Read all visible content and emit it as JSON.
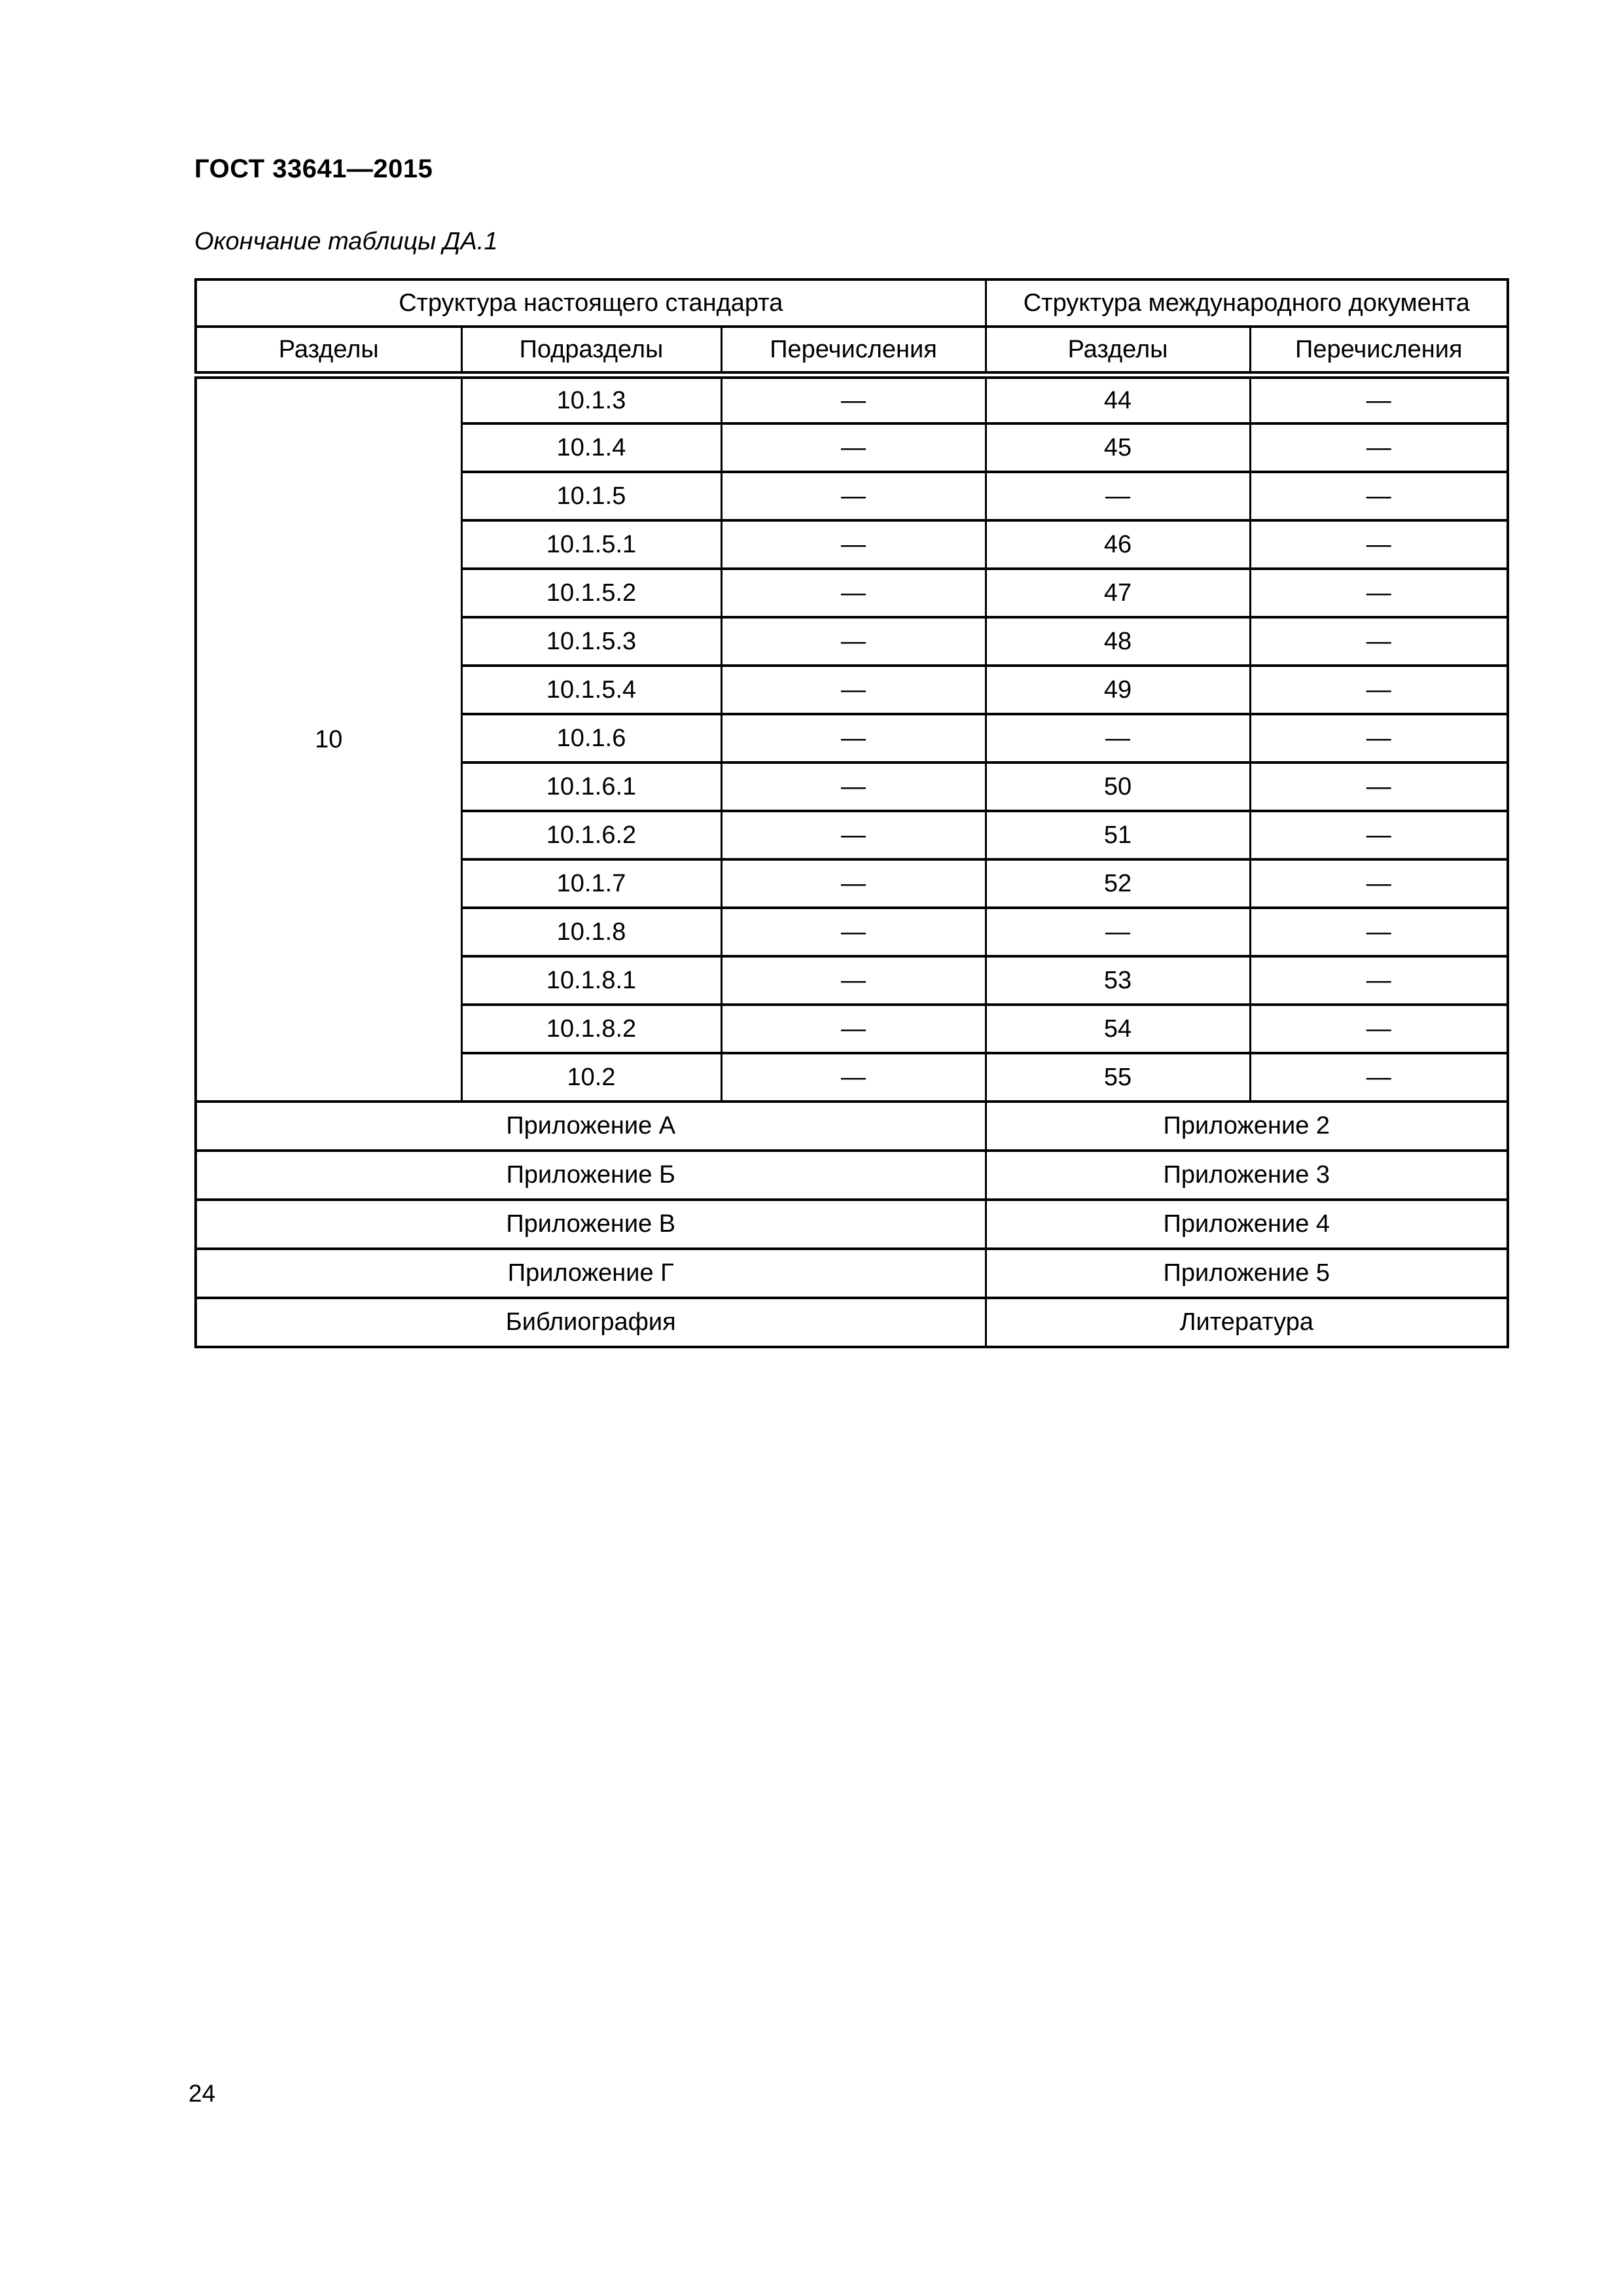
{
  "page": {
    "header": "ГОСТ 33641—2015",
    "caption": "Окончание таблицы ДА.1",
    "page_number": "24"
  },
  "table": {
    "group_headers": [
      {
        "label": "Структура настоящего стандарта",
        "colspan": 3
      },
      {
        "label": "Структура международного документа",
        "colspan": 2
      }
    ],
    "column_headers": [
      "Разделы",
      "Подразделы",
      "Перечисления",
      "Разделы",
      "Перечисления"
    ],
    "section_label": "10",
    "rows": [
      {
        "subsection": "10.1.3",
        "enumerations": "—",
        "intl_section": "44",
        "intl_enumerations": "—"
      },
      {
        "subsection": "10.1.4",
        "enumerations": "—",
        "intl_section": "45",
        "intl_enumerations": "—"
      },
      {
        "subsection": "10.1.5",
        "enumerations": "—",
        "intl_section": "—",
        "intl_enumerations": "—"
      },
      {
        "subsection": "10.1.5.1",
        "enumerations": "—",
        "intl_section": "46",
        "intl_enumerations": "—"
      },
      {
        "subsection": "10.1.5.2",
        "enumerations": "—",
        "intl_section": "47",
        "intl_enumerations": "—"
      },
      {
        "subsection": "10.1.5.3",
        "enumerations": "—",
        "intl_section": "48",
        "intl_enumerations": "—"
      },
      {
        "subsection": "10.1.5.4",
        "enumerations": "—",
        "intl_section": "49",
        "intl_enumerations": "—"
      },
      {
        "subsection": "10.1.6",
        "enumerations": "—",
        "intl_section": "—",
        "intl_enumerations": "—"
      },
      {
        "subsection": "10.1.6.1",
        "enumerations": "—",
        "intl_section": "50",
        "intl_enumerations": "—"
      },
      {
        "subsection": "10.1.6.2",
        "enumerations": "—",
        "intl_section": "51",
        "intl_enumerations": "—"
      },
      {
        "subsection": "10.1.7",
        "enumerations": "—",
        "intl_section": "52",
        "intl_enumerations": "—"
      },
      {
        "subsection": "10.1.8",
        "enumerations": "—",
        "intl_section": "—",
        "intl_enumerations": "—"
      },
      {
        "subsection": "10.1.8.1",
        "enumerations": "—",
        "intl_section": "53",
        "intl_enumerations": "—"
      },
      {
        "subsection": "10.1.8.2",
        "enumerations": "—",
        "intl_section": "54",
        "intl_enumerations": "—"
      },
      {
        "subsection": "10.2",
        "enumerations": "—",
        "intl_section": "55",
        "intl_enumerations": "—"
      }
    ],
    "appendix_rows": [
      {
        "left": "Приложение А",
        "right": "Приложение 2"
      },
      {
        "left": "Приложение Б",
        "right": "Приложение 3"
      },
      {
        "left": "Приложение В",
        "right": "Приложение 4"
      },
      {
        "left": "Приложение Г",
        "right": "Приложение 5"
      },
      {
        "left": "Библиография",
        "right": "Литература"
      }
    ]
  }
}
